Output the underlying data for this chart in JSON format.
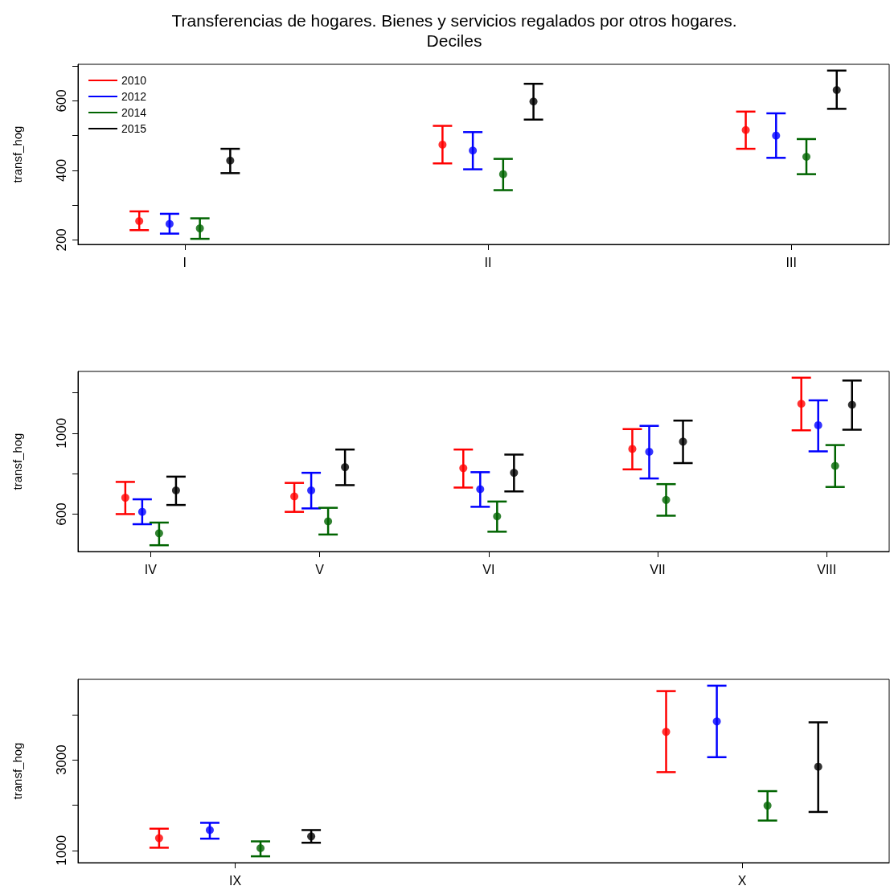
{
  "chart_data": [
    {
      "type": "scatter",
      "title": "Transferencias de hogares. Bienes y servicios regalados por otros hogares.\nDeciles",
      "ylabel": "transf_hog",
      "categories": [
        "I",
        "II",
        "III"
      ],
      "ylim": [
        187,
        705
      ],
      "yticks": [
        200,
        {
          "value": 300,
          "label": null
        },
        400,
        {
          "value": 500,
          "label": null
        },
        600,
        {
          "value": 700,
          "label": null
        }
      ],
      "marker": "circle",
      "grid": false,
      "legend": "top left",
      "series": [
        {
          "name": "2010",
          "color": "#ff0000",
          "values": [
            254,
            474,
            516
          ],
          "errors": [
            [
              228,
              282
            ],
            [
              420,
              528
            ],
            [
              462,
              569
            ]
          ]
        },
        {
          "name": "2012",
          "color": "#0000ff",
          "values": [
            246,
            457,
            500
          ],
          "errors": [
            [
              218,
              275
            ],
            [
              403,
              510
            ],
            [
              436,
              564
            ]
          ]
        },
        {
          "name": "2014",
          "color": "#006400",
          "values": [
            233,
            389,
            439
          ],
          "errors": [
            [
              203,
              262
            ],
            [
              343,
              433
            ],
            [
              389,
              490
            ]
          ]
        },
        {
          "name": "2015",
          "color": "#000000",
          "values": [
            428,
            598,
            631
          ],
          "errors": [
            [
              392,
              462
            ],
            [
              546,
              649
            ],
            [
              577,
              687
            ]
          ]
        }
      ]
    },
    {
      "type": "scatter",
      "ylabel": "transf_hog",
      "categories": [
        "IV",
        "V",
        "VI",
        "VII",
        "VIII"
      ],
      "ylim": [
        415,
        1305
      ],
      "yticks": [
        {
          "value": 600,
          "label": "600"
        },
        {
          "value": 800,
          "label": null
        },
        {
          "value": 1000,
          "label": "1000"
        },
        {
          "value": 1200,
          "label": null
        }
      ],
      "marker": "circle",
      "grid": false,
      "series": [
        {
          "color": "#ff0000",
          "values": [
            681,
            687,
            827,
            922,
            1145
          ],
          "errors": [
            [
              600,
              759
            ],
            [
              611,
              754
            ],
            [
              731,
              919
            ],
            [
              821,
              1020
            ],
            [
              1014,
              1274
            ]
          ]
        },
        {
          "color": "#0000ff",
          "values": [
            611,
            717,
            723,
            908,
            1039
          ],
          "errors": [
            [
              550,
              673
            ],
            [
              628,
              804
            ],
            [
              636,
              807
            ],
            [
              776,
              1036
            ],
            [
              910,
              1162
            ]
          ]
        },
        {
          "color": "#006400",
          "values": [
            505,
            564,
            589,
            670,
            838
          ],
          "errors": [
            [
              446,
              558
            ],
            [
              499,
              631
            ],
            [
              513,
              662
            ],
            [
              592,
              748
            ],
            [
              734,
              941
            ]
          ]
        },
        {
          "color": "#000000",
          "values": [
            717,
            832,
            804,
            958,
            1140
          ],
          "errors": [
            [
              645,
              785
            ],
            [
              743,
              919
            ],
            [
              712,
              894
            ],
            [
              852,
              1062
            ],
            [
              1017,
              1260
            ]
          ]
        }
      ]
    },
    {
      "type": "scatter",
      "ylabel": "transf_hog",
      "categories": [
        "IX",
        "X"
      ],
      "ylim": [
        730,
        4780
      ],
      "yticks": [
        1000,
        {
          "value": 2000,
          "label": null
        },
        3000,
        {
          "value": 4000,
          "label": null
        }
      ],
      "marker": "circle",
      "grid": false,
      "series": [
        {
          "color": "#ff0000",
          "values": [
            1270,
            3620
          ],
          "errors": [
            [
              1060,
              1480
            ],
            [
              2730,
              4520
            ]
          ]
        },
        {
          "color": "#0000ff",
          "values": [
            1450,
            3850
          ],
          "errors": [
            [
              1260,
              1610
            ],
            [
              3060,
              4640
            ]
          ]
        },
        {
          "color": "#006400",
          "values": [
            1050,
            1990
          ],
          "errors": [
            [
              870,
              1200
            ],
            [
              1660,
              2310
            ]
          ]
        },
        {
          "color": "#000000",
          "values": [
            1310,
            2850
          ],
          "errors": [
            [
              1170,
              1450
            ],
            [
              1850,
              3830
            ]
          ]
        }
      ]
    }
  ]
}
